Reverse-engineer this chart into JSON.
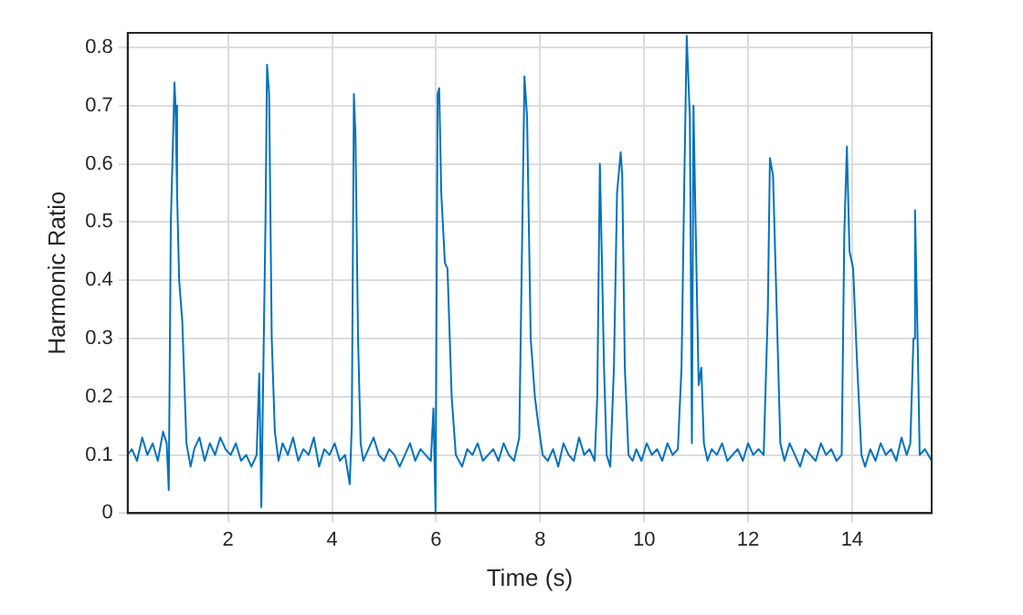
{
  "chart_data": {
    "type": "line",
    "xlabel": "Time (s)",
    "ylabel": "Harmonic Ratio",
    "xlim": [
      0.07,
      15.53
    ],
    "ylim": [
      0,
      0.825
    ],
    "xticks": [
      2,
      4,
      6,
      8,
      10,
      12,
      14
    ],
    "yticks": [
      0,
      0.1,
      0.2,
      0.3,
      0.4,
      0.5,
      0.6,
      0.7,
      0.8
    ],
    "grid": true,
    "legend": false,
    "marker": "none",
    "line_style": "solid",
    "series": [
      {
        "color": "#0072bd",
        "x": [
          0.07,
          0.15,
          0.25,
          0.35,
          0.45,
          0.55,
          0.65,
          0.75,
          0.82,
          0.86,
          0.9,
          0.93,
          0.97,
          0.99,
          1.02,
          1.06,
          1.12,
          1.2,
          1.28,
          1.35,
          1.45,
          1.55,
          1.65,
          1.75,
          1.85,
          1.95,
          2.05,
          2.15,
          2.25,
          2.35,
          2.45,
          2.55,
          2.6,
          2.64,
          2.72,
          2.75,
          2.79,
          2.84,
          2.9,
          2.97,
          3.05,
          3.15,
          3.25,
          3.35,
          3.45,
          3.55,
          3.65,
          3.75,
          3.85,
          3.95,
          4.05,
          4.15,
          4.25,
          4.34,
          4.38,
          4.42,
          4.45,
          4.5,
          4.55,
          4.6,
          4.7,
          4.8,
          4.9,
          5.0,
          5.1,
          5.2,
          5.3,
          5.4,
          5.5,
          5.6,
          5.7,
          5.8,
          5.9,
          5.95,
          5.99,
          6.03,
          6.06,
          6.1,
          6.17,
          6.22,
          6.3,
          6.38,
          6.5,
          6.6,
          6.7,
          6.8,
          6.9,
          7.0,
          7.1,
          7.2,
          7.3,
          7.4,
          7.5,
          7.6,
          7.66,
          7.7,
          7.75,
          7.82,
          7.9,
          7.97,
          8.05,
          8.15,
          8.25,
          8.35,
          8.45,
          8.55,
          8.65,
          8.75,
          8.85,
          8.95,
          9.05,
          9.1,
          9.15,
          9.19,
          9.23,
          9.28,
          9.35,
          9.42,
          9.48,
          9.55,
          9.58,
          9.63,
          9.7,
          9.78,
          9.85,
          9.95,
          10.05,
          10.15,
          10.25,
          10.35,
          10.45,
          10.55,
          10.65,
          10.72,
          10.77,
          10.82,
          10.88,
          10.92,
          10.95,
          10.99,
          11.05,
          11.1,
          11.15,
          11.22,
          11.3,
          11.4,
          11.5,
          11.6,
          11.7,
          11.8,
          11.9,
          12.0,
          12.1,
          12.2,
          12.3,
          12.38,
          12.42,
          12.48,
          12.55,
          12.62,
          12.7,
          12.8,
          12.9,
          13.0,
          13.1,
          13.2,
          13.3,
          13.4,
          13.5,
          13.6,
          13.7,
          13.8,
          13.85,
          13.9,
          13.95,
          14.02,
          14.1,
          14.18,
          14.25,
          14.35,
          14.45,
          14.55,
          14.65,
          14.75,
          14.85,
          14.95,
          15.05,
          15.12,
          15.18,
          15.21,
          15.26,
          15.3,
          15.4,
          15.53
        ],
        "values": [
          0.1,
          0.11,
          0.09,
          0.13,
          0.1,
          0.12,
          0.09,
          0.14,
          0.12,
          0.04,
          0.5,
          0.6,
          0.74,
          0.7,
          0.55,
          0.4,
          0.33,
          0.12,
          0.08,
          0.11,
          0.13,
          0.09,
          0.12,
          0.1,
          0.13,
          0.11,
          0.1,
          0.12,
          0.09,
          0.1,
          0.08,
          0.1,
          0.24,
          0.01,
          0.5,
          0.77,
          0.72,
          0.3,
          0.14,
          0.09,
          0.12,
          0.1,
          0.13,
          0.09,
          0.11,
          0.1,
          0.13,
          0.08,
          0.11,
          0.1,
          0.12,
          0.09,
          0.1,
          0.05,
          0.15,
          0.72,
          0.65,
          0.3,
          0.12,
          0.09,
          0.11,
          0.13,
          0.1,
          0.09,
          0.11,
          0.1,
          0.08,
          0.1,
          0.12,
          0.09,
          0.11,
          0.1,
          0.09,
          0.18,
          0.0,
          0.72,
          0.73,
          0.55,
          0.43,
          0.42,
          0.2,
          0.1,
          0.08,
          0.11,
          0.1,
          0.12,
          0.09,
          0.1,
          0.11,
          0.09,
          0.12,
          0.1,
          0.09,
          0.13,
          0.5,
          0.75,
          0.68,
          0.3,
          0.2,
          0.15,
          0.1,
          0.09,
          0.11,
          0.08,
          0.12,
          0.1,
          0.09,
          0.13,
          0.1,
          0.11,
          0.09,
          0.2,
          0.6,
          0.43,
          0.25,
          0.1,
          0.08,
          0.25,
          0.55,
          0.62,
          0.58,
          0.25,
          0.1,
          0.09,
          0.11,
          0.09,
          0.12,
          0.1,
          0.11,
          0.09,
          0.12,
          0.1,
          0.11,
          0.25,
          0.55,
          0.82,
          0.68,
          0.12,
          0.7,
          0.5,
          0.22,
          0.25,
          0.12,
          0.09,
          0.11,
          0.1,
          0.12,
          0.09,
          0.1,
          0.11,
          0.09,
          0.12,
          0.1,
          0.11,
          0.1,
          0.35,
          0.61,
          0.58,
          0.35,
          0.12,
          0.09,
          0.12,
          0.1,
          0.08,
          0.11,
          0.1,
          0.09,
          0.12,
          0.1,
          0.11,
          0.09,
          0.1,
          0.48,
          0.63,
          0.45,
          0.42,
          0.25,
          0.1,
          0.08,
          0.11,
          0.09,
          0.12,
          0.1,
          0.11,
          0.09,
          0.13,
          0.1,
          0.12,
          0.3,
          0.52,
          0.3,
          0.1,
          0.11,
          0.09
        ]
      }
    ]
  }
}
